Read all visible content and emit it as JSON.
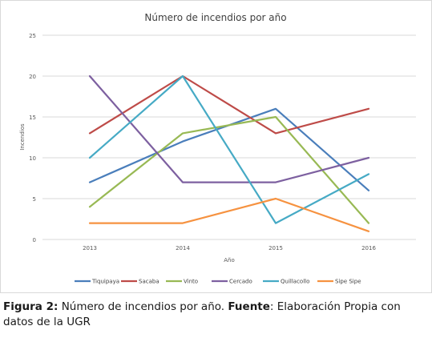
{
  "chart_data": {
    "type": "line",
    "title": "Número de incendios por año",
    "xlabel": "Año",
    "ylabel": "Incendios",
    "x": [
      "2013",
      "2014",
      "2015",
      "2016"
    ],
    "ylim": [
      0,
      25
    ],
    "yticks": [
      "0",
      "5",
      "10",
      "15",
      "20",
      "25"
    ],
    "grid": true,
    "legend_position": "bottom",
    "series": [
      {
        "name": "Tiquipaya",
        "color": "#4a7ebb",
        "values": [
          7,
          12,
          16,
          6
        ]
      },
      {
        "name": "Sacaba",
        "color": "#be4b48",
        "values": [
          13,
          20,
          13,
          16
        ]
      },
      {
        "name": "Vinto",
        "color": "#98b954",
        "values": [
          4,
          13,
          15,
          2
        ]
      },
      {
        "name": "Cercado",
        "color": "#7d60a0",
        "values": [
          20,
          7,
          7,
          10
        ]
      },
      {
        "name": "Quillacollo",
        "color": "#46aac5",
        "values": [
          10,
          20,
          2,
          8
        ]
      },
      {
        "name": "Sipe Sipe",
        "color": "#f69240",
        "values": [
          2,
          2,
          5,
          1
        ]
      }
    ]
  },
  "caption": {
    "figure_label": "Figura 2:",
    "figure_text": "Número de incendios por año.",
    "source_label": "Fuente",
    "source_text": ": Elaboración Propia con datos de la UGR"
  }
}
